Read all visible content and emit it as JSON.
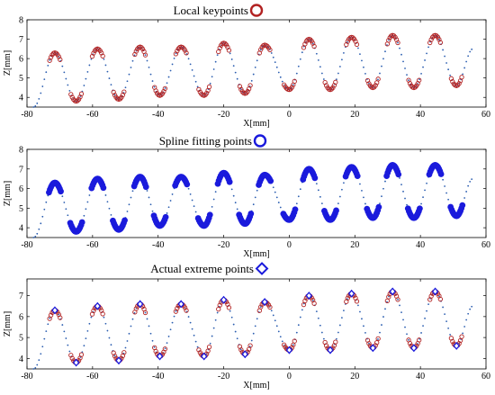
{
  "chart_data": [
    {
      "type": "scatter",
      "title": "Local keypoints",
      "xlabel": "X[mm]",
      "ylabel": "Z[mm]",
      "xlim": [
        -80,
        60
      ],
      "ylim": [
        3.5,
        8
      ],
      "xticks": [
        "-80",
        "-60",
        "-40",
        "-20",
        "0",
        "20",
        "40",
        "60"
      ],
      "yticks": [
        "4",
        "5",
        "6",
        "7",
        "8"
      ],
      "legend_marker": "circle",
      "legend_color": "#b22222",
      "peaks": [
        [
          -71.5,
          6.3
        ],
        [
          -58.5,
          6.5
        ],
        [
          -45.5,
          6.6
        ],
        [
          -33,
          6.6
        ],
        [
          -20,
          6.8
        ],
        [
          -7.5,
          6.7
        ],
        [
          6,
          7.0
        ],
        [
          19,
          7.1
        ],
        [
          31.5,
          7.2
        ],
        [
          44.5,
          7.2
        ]
      ],
      "valleys": [
        [
          -65,
          3.8
        ],
        [
          -52,
          3.9
        ],
        [
          -39.5,
          4.1
        ],
        [
          -26,
          4.1
        ],
        [
          -13.5,
          4.2
        ],
        [
          0,
          4.4
        ],
        [
          12.5,
          4.4
        ],
        [
          25.5,
          4.5
        ],
        [
          38,
          4.5
        ],
        [
          51,
          4.6
        ]
      ],
      "curve_start": [
        -78,
        3.5
      ],
      "curve_end": [
        56,
        6.5
      ],
      "keypoint_color": "#b22222"
    },
    {
      "type": "scatter",
      "title": "Spline fitting points",
      "xlabel": "X[mm]",
      "ylabel": "Z[mm]",
      "xlim": [
        -80,
        60
      ],
      "ylim": [
        3.5,
        8
      ],
      "xticks": [
        "-80",
        "-60",
        "-40",
        "-20",
        "0",
        "20",
        "40",
        "60"
      ],
      "yticks": [
        "4",
        "5",
        "6",
        "7",
        "8"
      ],
      "legend_marker": "circle",
      "legend_color": "#1a1adc",
      "keypoint_color": "#1a1adc"
    },
    {
      "type": "scatter",
      "title": "Actual extreme points",
      "xlabel": "X[mm]",
      "ylabel": "Z[mm]",
      "xlim": [
        -80,
        60
      ],
      "ylim": [
        3.5,
        7.8
      ],
      "xticks": [
        "-80",
        "-60",
        "-40",
        "-20",
        "0",
        "20",
        "40",
        "60"
      ],
      "yticks": [
        "4",
        "5",
        "6",
        "7"
      ],
      "legend_marker": "diamond",
      "legend_color": "#1a1adc",
      "keypoint_color": "#b22222",
      "extreme_color": "#1a1adc"
    }
  ],
  "colors": {
    "scan_points": "#2a5db0",
    "axis": "#000000"
  }
}
